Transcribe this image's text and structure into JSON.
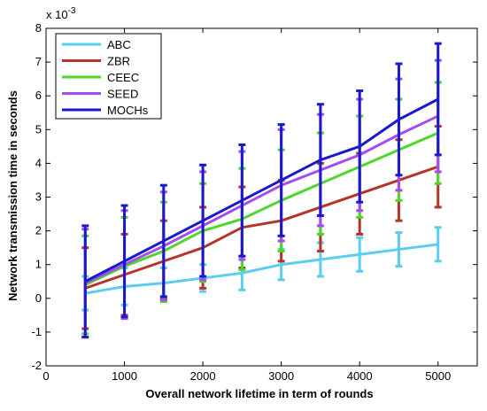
{
  "chart_data": {
    "type": "line",
    "xlabel": "Overall network lifetime in term of rounds",
    "ylabel": "Network transmission time in seconds",
    "scale_label": "x 10",
    "scale_exponent": "-3",
    "xlim": [
      0,
      5500
    ],
    "ylim": [
      -2,
      8
    ],
    "xticks": [
      "0",
      "1000",
      "2000",
      "3000",
      "4000",
      "5000"
    ],
    "xtick_values": [
      0,
      1000,
      2000,
      3000,
      4000,
      5000
    ],
    "yticks": [
      "-2",
      "-1",
      "0",
      "1",
      "2",
      "3",
      "4",
      "5",
      "6",
      "7",
      "8"
    ],
    "ytick_values": [
      -2,
      -1,
      0,
      1,
      2,
      3,
      4,
      5,
      6,
      7,
      8
    ],
    "legend_position": "top-left",
    "x": [
      500,
      1000,
      1500,
      2000,
      2500,
      3000,
      3500,
      4000,
      4500,
      5000
    ],
    "series": [
      {
        "name": "ABC",
        "color": "#5BCEF0",
        "values": [
          0.15,
          0.35,
          0.45,
          0.6,
          0.75,
          1.0,
          1.15,
          1.3,
          1.45,
          1.6
        ],
        "err_low": [
          -0.35,
          -0.2,
          -0.05,
          0.2,
          0.25,
          0.55,
          0.65,
          0.8,
          0.95,
          1.1
        ],
        "err_high": [
          0.65,
          0.9,
          0.9,
          1.0,
          1.25,
          1.45,
          1.65,
          1.8,
          1.95,
          2.1
        ]
      },
      {
        "name": "ZBR",
        "color": "#B5352A",
        "values": [
          0.3,
          0.7,
          1.1,
          1.5,
          2.1,
          2.3,
          2.7,
          3.1,
          3.5,
          3.9
        ],
        "err_low": [
          -0.9,
          -0.5,
          0.0,
          0.3,
          0.9,
          1.1,
          1.4,
          1.9,
          2.3,
          2.7
        ],
        "err_high": [
          1.5,
          1.9,
          2.3,
          2.7,
          3.3,
          3.5,
          4.0,
          4.3,
          4.7,
          5.1
        ]
      },
      {
        "name": "CEEC",
        "color": "#4FD62A",
        "values": [
          0.4,
          0.95,
          1.4,
          2.0,
          2.35,
          2.9,
          3.4,
          3.9,
          4.4,
          4.9
        ],
        "err_low": [
          -1.05,
          -0.55,
          -0.1,
          0.5,
          0.85,
          1.4,
          1.9,
          2.4,
          2.9,
          3.4
        ],
        "err_high": [
          1.85,
          2.4,
          2.85,
          3.4,
          3.85,
          4.4,
          4.9,
          5.4,
          5.9,
          6.4
        ]
      },
      {
        "name": "SEED",
        "color": "#A54CF0",
        "values": [
          0.45,
          1.0,
          1.55,
          2.15,
          2.75,
          3.35,
          3.8,
          4.25,
          4.85,
          5.4
        ],
        "err_low": [
          -1.15,
          -0.6,
          -0.05,
          0.55,
          1.15,
          1.7,
          2.15,
          2.6,
          3.2,
          3.75
        ],
        "err_high": [
          2.05,
          2.6,
          3.15,
          3.75,
          4.35,
          5.0,
          5.45,
          5.9,
          6.5,
          7.05
        ]
      },
      {
        "name": "MOCHs",
        "color": "#1A1ACC",
        "values": [
          0.5,
          1.1,
          1.7,
          2.3,
          2.9,
          3.5,
          4.1,
          4.5,
          5.3,
          5.9
        ],
        "err_low": [
          -1.15,
          -0.55,
          0.05,
          0.65,
          1.25,
          1.85,
          2.45,
          2.85,
          3.65,
          4.25
        ],
        "err_high": [
          2.15,
          2.75,
          3.35,
          3.95,
          4.55,
          5.15,
          5.75,
          6.15,
          6.95,
          7.55
        ]
      }
    ]
  }
}
